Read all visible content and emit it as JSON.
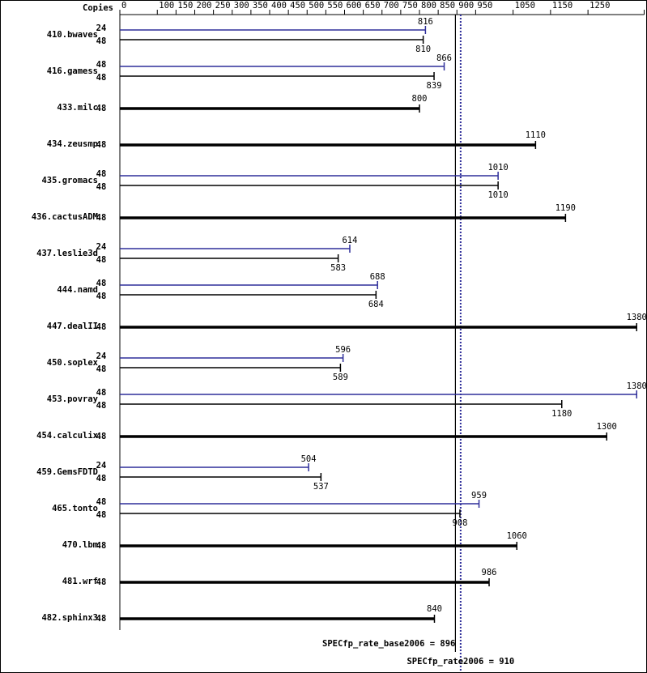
{
  "chart_data": {
    "type": "spec-bar",
    "copies_header": "Copies",
    "categories": [
      "410.bwaves",
      "416.gamess",
      "433.milc",
      "434.zeusmp",
      "435.gromacs",
      "436.cactusADM",
      "437.leslie3d",
      "444.namd",
      "447.dealII",
      "450.soplex",
      "453.povray",
      "454.calculix",
      "459.GemsFDTD",
      "465.tonto",
      "470.lbm",
      "481.wrf",
      "482.sphinx3"
    ],
    "base": {
      "color": "#000000",
      "copies": [
        48,
        48,
        48,
        48,
        48,
        48,
        48,
        48,
        48,
        48,
        48,
        48,
        48,
        48,
        48,
        48,
        48
      ],
      "values": [
        810,
        839,
        800,
        1110,
        1010,
        1190,
        583,
        684,
        1380,
        589,
        1180,
        1300,
        537,
        908,
        1060,
        986,
        840
      ]
    },
    "peak": {
      "color": "#2e2e9a",
      "copies": [
        24,
        48,
        null,
        null,
        48,
        null,
        24,
        48,
        null,
        24,
        48,
        null,
        24,
        48,
        null,
        null,
        null
      ],
      "values": [
        816,
        866,
        null,
        null,
        1010,
        null,
        614,
        688,
        null,
        596,
        1380,
        null,
        504,
        959,
        null,
        null,
        null
      ]
    },
    "xlim": [
      0,
      1400
    ],
    "xticks": [
      0,
      100,
      150,
      200,
      250,
      300,
      350,
      400,
      450,
      500,
      550,
      600,
      650,
      700,
      750,
      800,
      850,
      900,
      950,
      1050,
      1150,
      1250,
      1400
    ],
    "reference_lines": [
      {
        "label": "SPECfp_rate_base2006 = 896",
        "value": 896,
        "color": "#000000",
        "style": "solid"
      },
      {
        "label": "SPECfp_rate2006 = 910",
        "value": 910,
        "color": "#2e2e9a",
        "style": "dotted"
      }
    ]
  }
}
